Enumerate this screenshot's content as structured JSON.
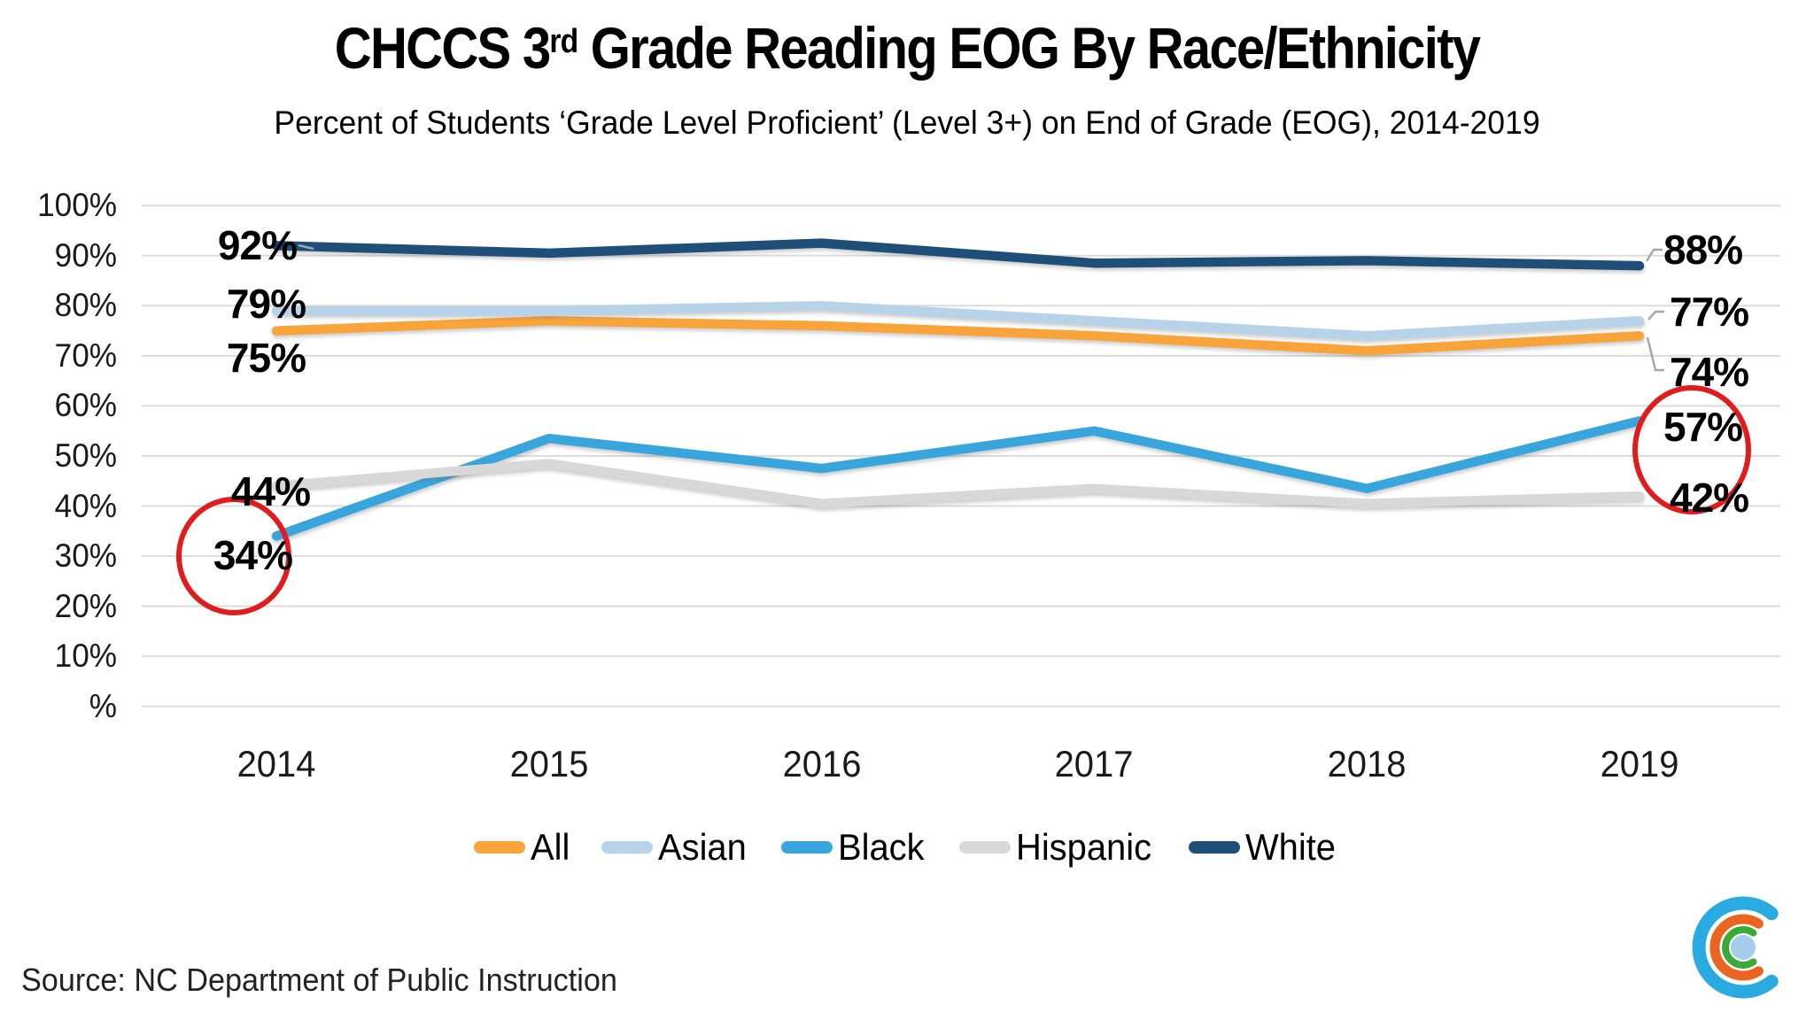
{
  "title": {
    "pre": "CHCCS 3",
    "sup": "rd",
    "post": " Grade Reading EOG By Race/Ethnicity"
  },
  "subtitle": "Percent of Students ‘Grade Level Proficient’ (Level 3+) on End of Grade (EOG), 2014-2019",
  "source": "Source: NC Department of Public Instruction",
  "logo": {
    "name": "concentric-c-logo",
    "outer_color": "#29ABE2",
    "middle_color": "#EB6420",
    "inner_color": "#3BAA36",
    "dot_color": "#A5CDEC"
  },
  "chart_data": {
    "type": "line",
    "title": "CHCCS 3rd Grade Reading EOG By Race/Ethnicity",
    "subtitle": "Percent of Students 'Grade Level Proficient' (Level 3+) on End of Grade (EOG), 2014-2019",
    "categories": [
      "2014",
      "2015",
      "2016",
      "2017",
      "2018",
      "2019"
    ],
    "y_ticks": [
      "100%",
      "90%",
      "80%",
      "70%",
      "60%",
      "50%",
      "40%",
      "30%",
      "20%",
      "10%",
      "%"
    ],
    "ylim": [
      0,
      100
    ],
    "grid": "horizontal",
    "gridline_color": "#DCDCDC",
    "legend_position": "bottom",
    "series": [
      {
        "name": "All",
        "color": "#F9A43B",
        "values": [
          75,
          77,
          76,
          74,
          71,
          74
        ]
      },
      {
        "name": "Asian",
        "color": "#B7D3EA",
        "values": [
          79,
          79,
          80,
          77,
          74,
          77
        ]
      },
      {
        "name": "Black",
        "color": "#38A5DD",
        "values": [
          34,
          53.5,
          47.5,
          55,
          43.5,
          57
        ]
      },
      {
        "name": "Hispanic",
        "color": "#D8D8D8",
        "values": [
          44,
          48.5,
          40.5,
          43.5,
          40.5,
          42
        ]
      },
      {
        "name": "White",
        "color": "#1F4E79",
        "values": [
          92,
          90.5,
          92.5,
          88.5,
          89,
          88
        ]
      }
    ],
    "point_labels": {
      "left": [
        {
          "text": "92%",
          "series": "White",
          "year": "2014",
          "circled": false
        },
        {
          "text": "79%",
          "series": "Asian",
          "year": "2014",
          "circled": false
        },
        {
          "text": "75%",
          "series": "All",
          "year": "2014",
          "circled": false
        },
        {
          "text": "44%",
          "series": "Hispanic",
          "year": "2014",
          "circled": false
        },
        {
          "text": "34%",
          "series": "Black",
          "year": "2014",
          "circled": true
        }
      ],
      "right": [
        {
          "text": "88%",
          "series": "White",
          "year": "2019",
          "circled": false
        },
        {
          "text": "77%",
          "series": "Asian",
          "year": "2019",
          "circled": false
        },
        {
          "text": "74%",
          "series": "All",
          "year": "2019",
          "circled": false
        },
        {
          "text": "57%",
          "series": "Black",
          "year": "2019",
          "circled": true
        },
        {
          "text": "42%",
          "series": "Hispanic",
          "year": "2019",
          "circled": false
        }
      ]
    },
    "annotation_circle_color": "#E21B1C"
  }
}
